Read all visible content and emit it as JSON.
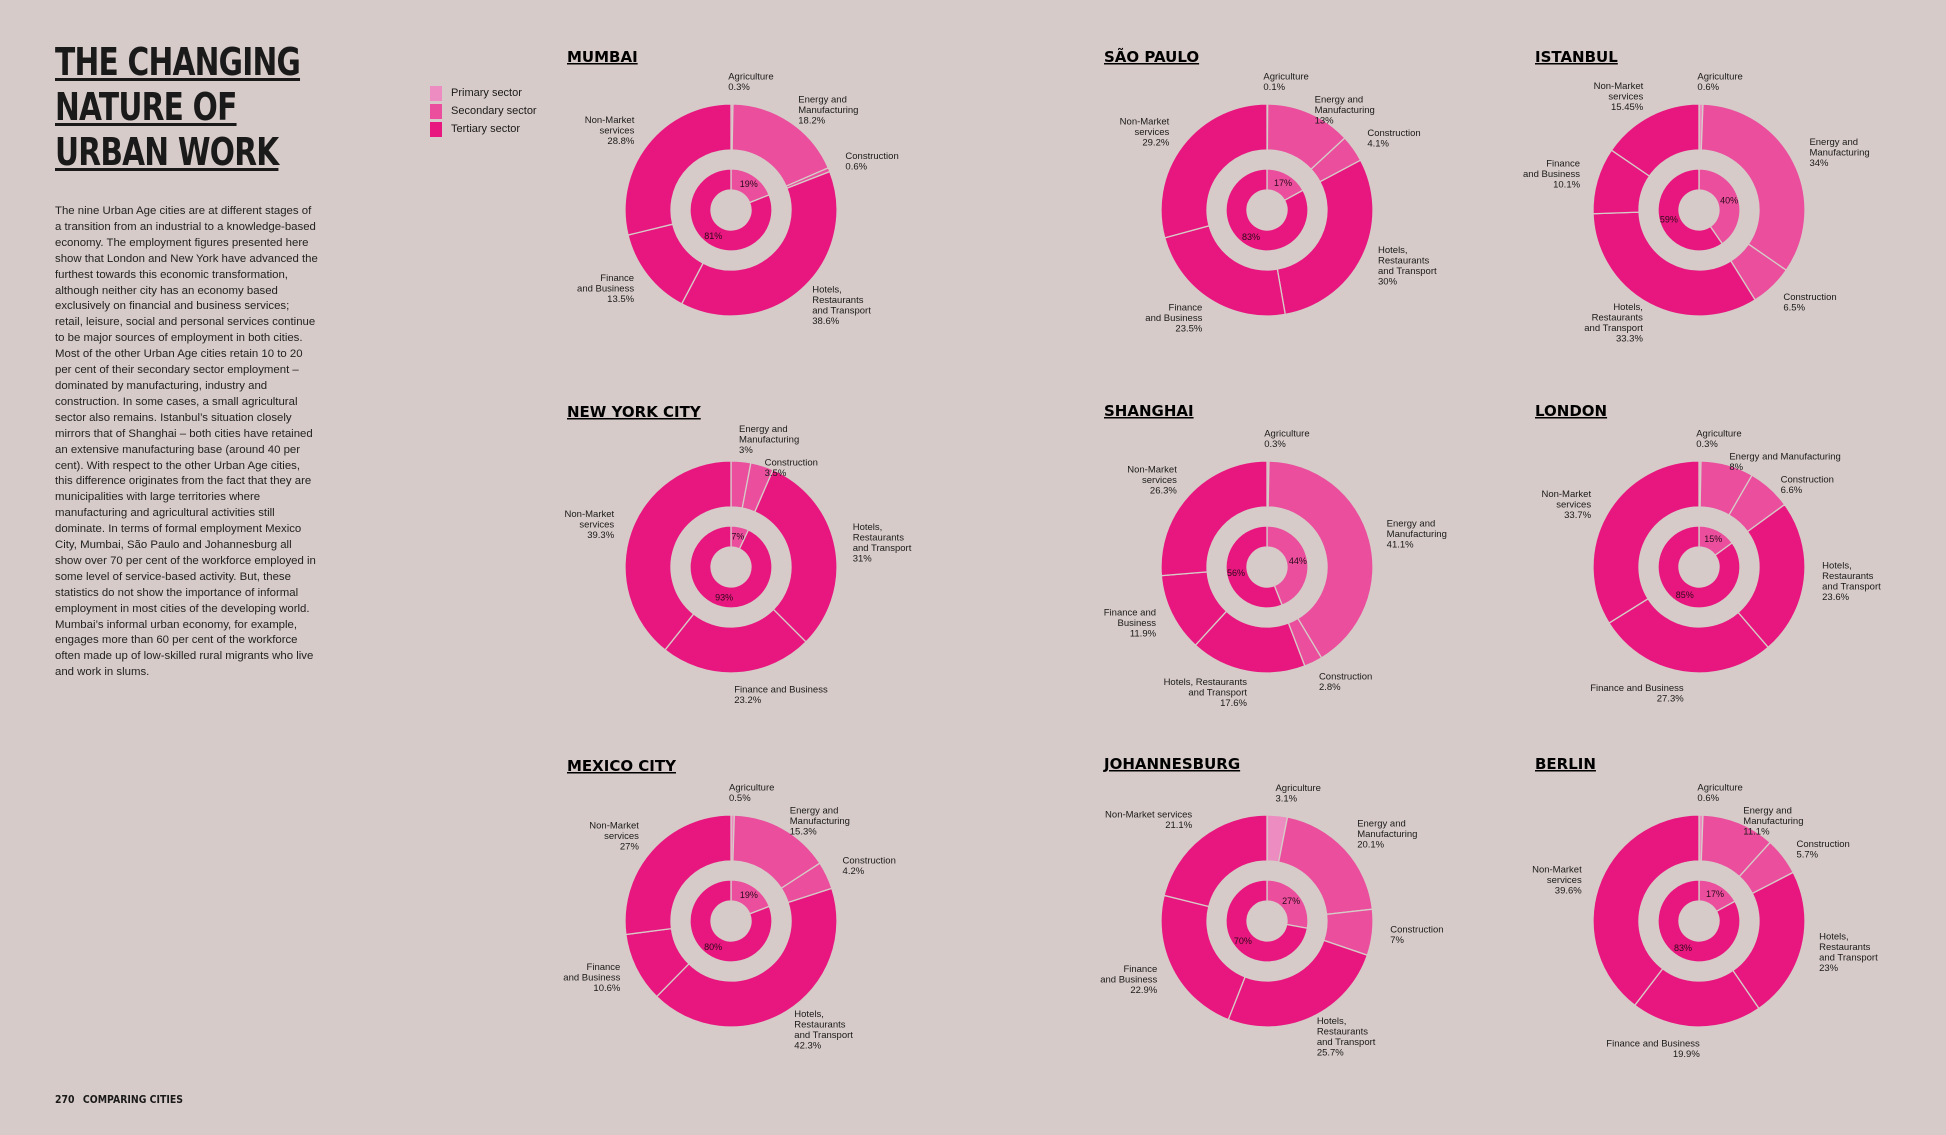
{
  "title": [
    "THE CHANGING",
    "NATURE OF",
    "URBAN WORK"
  ],
  "body": "The nine Urban Age cities are at different stages of a transition from an industrial to a knowledge-based economy. The employment figures presented here show that London and New York have advanced the furthest towards this economic transformation, although neither city has an economy based exclusively on financial and business services; retail, leisure, social and personal services continue to be major sources of employment in both cities. Most of the other Urban Age cities retain 10 to 20 per cent of their secondary sector employment – dominated by manufacturing, industry and construction. In some cases, a small agricultural sector also remains. Istanbul’s situation closely mirrors that of Shanghai – both cities have retained an extensive manufacturing base (around 40 per cent). With respect to the other Urban Age cities, this difference originates from the fact that they are municipalities with large territories where manufacturing and agricultural activities still dominate. In terms of formal employment Mexico City, Mumbai, São Paulo and Johannesburg all show over 70 per cent of the workforce employed in some level of service-based activity. But, these statistics do not show the importance of informal employment in most cities of the developing world. Mumbai’s informal urban economy, for example, engages more than 60 per cent of the workforce often made up of low-skilled rural migrants who live and work in slums.",
  "legend": [
    {
      "label": "Primary sector",
      "color": "#ec8cc0"
    },
    {
      "label": "Secondary sector",
      "color": "#ea4e9d"
    },
    {
      "label": "Tertiary sector",
      "color": "#e8177f"
    }
  ],
  "footer": {
    "page": "270",
    "section": "COMPARING CITIES"
  },
  "colors": {
    "primary": "#ec8cc0",
    "secondary": "#ea4e9d",
    "tertiary": "#e8177f",
    "gap": "#d6cbc8"
  },
  "chart_data": [
    {
      "type": "pie",
      "title": "MUMBAI",
      "slices": [
        {
          "label": [
            "Agriculture",
            "0.3%"
          ],
          "value": 0.3,
          "sector": "primary"
        },
        {
          "label": [
            "Energy and",
            "Manufacturing",
            "18.2%"
          ],
          "value": 18.2,
          "sector": "secondary"
        },
        {
          "label": [
            "Construction",
            "0.6%"
          ],
          "value": 0.6,
          "sector": "secondary"
        },
        {
          "label": [
            "Hotels,",
            "Restaurants",
            "and Transport",
            "38.6%"
          ],
          "value": 38.6,
          "sector": "tertiary"
        },
        {
          "label": [
            "Finance",
            "and Business",
            "13.5%"
          ],
          "value": 13.5,
          "sector": "tertiary"
        },
        {
          "label": [
            "Non-Market",
            "services",
            "28.8%"
          ],
          "value": 28.8,
          "sector": "tertiary"
        }
      ],
      "inner": [
        {
          "label": "19%",
          "value": 19
        },
        {
          "label": "81%",
          "value": 81
        }
      ]
    },
    {
      "type": "pie",
      "title": "SÃO PAULO",
      "slices": [
        {
          "label": [
            "Agriculture",
            "0.1%"
          ],
          "value": 0.1,
          "sector": "primary"
        },
        {
          "label": [
            "Energy and",
            "Manufacturing",
            "13%"
          ],
          "value": 13,
          "sector": "secondary"
        },
        {
          "label": [
            "Construction",
            "4.1%"
          ],
          "value": 4.1,
          "sector": "secondary"
        },
        {
          "label": [
            "Hotels,",
            "Restaurants",
            "and Transport",
            "30%"
          ],
          "value": 30,
          "sector": "tertiary"
        },
        {
          "label": [
            "Finance",
            "and Business",
            "23.5%"
          ],
          "value": 23.5,
          "sector": "tertiary"
        },
        {
          "label": [
            "Non-Market",
            "services",
            "29.2%"
          ],
          "value": 29.2,
          "sector": "tertiary"
        }
      ],
      "inner": [
        {
          "label": "17%",
          "value": 17
        },
        {
          "label": "83%",
          "value": 83
        }
      ]
    },
    {
      "type": "pie",
      "title": "ISTANBUL",
      "slices": [
        {
          "label": [
            "Agriculture",
            "0.6%"
          ],
          "value": 0.6,
          "sector": "primary"
        },
        {
          "label": [
            "Energy and",
            "Manufacturing",
            "34%"
          ],
          "value": 34,
          "sector": "secondary"
        },
        {
          "label": [
            "Construction",
            "6.5%"
          ],
          "value": 6.5,
          "sector": "secondary"
        },
        {
          "label": [
            "Hotels,",
            "Restaurants",
            "and Transport",
            "33.3%"
          ],
          "value": 33.3,
          "sector": "tertiary"
        },
        {
          "label": [
            "Finance",
            "and Business",
            "10.1%"
          ],
          "value": 10.1,
          "sector": "tertiary"
        },
        {
          "label": [
            "Non-Market",
            "services",
            "15.45%"
          ],
          "value": 15.45,
          "sector": "tertiary"
        }
      ],
      "inner": [
        {
          "label": "40%",
          "value": 40
        },
        {
          "label": "59%",
          "value": 59
        }
      ]
    },
    {
      "type": "pie",
      "title": "NEW YORK CITY",
      "slices": [
        {
          "label": [
            "Energy and",
            "Manufacturing",
            "3%"
          ],
          "value": 3,
          "sector": "secondary"
        },
        {
          "label": [
            "Construction",
            "3.5%"
          ],
          "value": 3.5,
          "sector": "secondary"
        },
        {
          "label": [
            "Hotels,",
            "Restaurants",
            "and Transport",
            "31%"
          ],
          "value": 31,
          "sector": "tertiary"
        },
        {
          "label": [
            "Finance and Business",
            "23.2%"
          ],
          "value": 23.2,
          "sector": "tertiary"
        },
        {
          "label": [
            "Non-Market",
            "services",
            "39.3%"
          ],
          "value": 39.3,
          "sector": "tertiary"
        }
      ],
      "inner": [
        {
          "label": "7%",
          "value": 7
        },
        {
          "label": "93%",
          "value": 93
        }
      ]
    },
    {
      "type": "pie",
      "title": "SHANGHAI",
      "slices": [
        {
          "label": [
            "Agriculture",
            "0.3%"
          ],
          "value": 0.3,
          "sector": "primary"
        },
        {
          "label": [
            "Energy and",
            "Manufacturing",
            "41.1%"
          ],
          "value": 41.1,
          "sector": "secondary"
        },
        {
          "label": [
            "Construction",
            "2.8%"
          ],
          "value": 2.8,
          "sector": "secondary"
        },
        {
          "label": [
            "Hotels, Restaurants",
            "and Transport",
            "17.6%"
          ],
          "value": 17.6,
          "sector": "tertiary"
        },
        {
          "label": [
            "Finance and",
            "Business",
            "11.9%"
          ],
          "value": 11.9,
          "sector": "tertiary"
        },
        {
          "label": [
            "Non-Market",
            "services",
            "26.3%"
          ],
          "value": 26.3,
          "sector": "tertiary"
        }
      ],
      "inner": [
        {
          "label": "44%",
          "value": 44
        },
        {
          "label": "56%",
          "value": 56
        }
      ]
    },
    {
      "type": "pie",
      "title": "LONDON",
      "slices": [
        {
          "label": [
            "Agriculture",
            "0.3%"
          ],
          "value": 0.3,
          "sector": "primary"
        },
        {
          "label": [
            "Energy and Manufacturing",
            "8%"
          ],
          "value": 8,
          "sector": "secondary"
        },
        {
          "label": [
            "Construction",
            "6.6%"
          ],
          "value": 6.6,
          "sector": "secondary"
        },
        {
          "label": [
            "Hotels,",
            "Restaurants",
            "and Transport",
            "23.6%"
          ],
          "value": 23.6,
          "sector": "tertiary"
        },
        {
          "label": [
            "Finance and Business",
            "27.3%"
          ],
          "value": 27.3,
          "sector": "tertiary"
        },
        {
          "label": [
            "Non-Market",
            "services",
            "33.7%"
          ],
          "value": 33.7,
          "sector": "tertiary"
        }
      ],
      "inner": [
        {
          "label": "15%",
          "value": 15
        },
        {
          "label": "85%",
          "value": 85
        }
      ]
    },
    {
      "type": "pie",
      "title": "MEXICO CITY",
      "slices": [
        {
          "label": [
            "Agriculture",
            "0.5%"
          ],
          "value": 0.5,
          "sector": "primary"
        },
        {
          "label": [
            "Energy and",
            "Manufacturing",
            "15.3%"
          ],
          "value": 15.3,
          "sector": "secondary"
        },
        {
          "label": [
            "Construction",
            "4.2%"
          ],
          "value": 4.2,
          "sector": "secondary"
        },
        {
          "label": [
            "Hotels,",
            "Restaurants",
            "and Transport",
            "42.3%"
          ],
          "value": 42.3,
          "sector": "tertiary"
        },
        {
          "label": [
            "Finance",
            "and Business",
            "10.6%"
          ],
          "value": 10.6,
          "sector": "tertiary"
        },
        {
          "label": [
            "Non-Market",
            "services",
            "27%"
          ],
          "value": 27,
          "sector": "tertiary"
        }
      ],
      "inner": [
        {
          "label": "19%",
          "value": 19
        },
        {
          "label": "80%",
          "value": 80
        }
      ]
    },
    {
      "type": "pie",
      "title": "JOHANNESBURG",
      "slices": [
        {
          "label": [
            "Agriculture",
            "3.1%"
          ],
          "value": 3.1,
          "sector": "primary"
        },
        {
          "label": [
            "Energy and",
            "Manufacturing",
            "20.1%"
          ],
          "value": 20.1,
          "sector": "secondary"
        },
        {
          "label": [
            "Construction",
            "7%"
          ],
          "value": 7,
          "sector": "secondary"
        },
        {
          "label": [
            "Hotels,",
            "Restaurants",
            "and Transport",
            "25.7%"
          ],
          "value": 25.7,
          "sector": "tertiary"
        },
        {
          "label": [
            "Finance",
            "and Business",
            "22.9%"
          ],
          "value": 22.9,
          "sector": "tertiary"
        },
        {
          "label": [
            "Non-Market services",
            "21.1%"
          ],
          "value": 21.1,
          "sector": "tertiary"
        }
      ],
      "inner": [
        {
          "label": "27%",
          "value": 27
        },
        {
          "label": "70%",
          "value": 70
        }
      ]
    },
    {
      "type": "pie",
      "title": "BERLIN",
      "slices": [
        {
          "label": [
            "Agriculture",
            "0.6%"
          ],
          "value": 0.6,
          "sector": "primary"
        },
        {
          "label": [
            "Energy and",
            "Manufacturing",
            "11.1%"
          ],
          "value": 11.1,
          "sector": "secondary"
        },
        {
          "label": [
            "Construction",
            "5.7%"
          ],
          "value": 5.7,
          "sector": "secondary"
        },
        {
          "label": [
            "Hotels,",
            "Restaurants",
            "and Transport",
            "23%"
          ],
          "value": 23,
          "sector": "tertiary"
        },
        {
          "label": [
            "Finance and Business",
            "19.9%"
          ],
          "value": 19.9,
          "sector": "tertiary"
        },
        {
          "label": [
            "Non-Market",
            "services",
            "39.6%"
          ],
          "value": 39.6,
          "sector": "tertiary"
        }
      ],
      "inner": [
        {
          "label": "17%",
          "value": 17
        },
        {
          "label": "83%",
          "value": 83
        }
      ]
    }
  ]
}
